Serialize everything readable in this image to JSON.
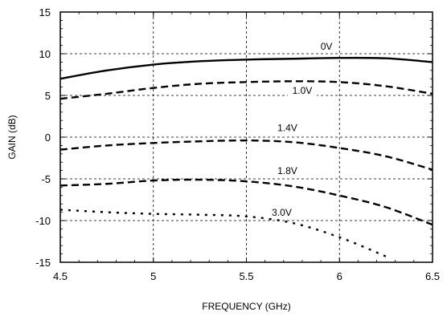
{
  "chart_data": {
    "type": "line",
    "xlabel": "FREQUENCY (GHz)",
    "ylabel": "GAIN (dB)",
    "xlim": [
      4.5,
      6.5
    ],
    "ylim": [
      -15,
      15
    ],
    "xticks": [
      4.5,
      5,
      5.5,
      6,
      6.5
    ],
    "yticks": [
      -15,
      -10,
      -5,
      0,
      5,
      10,
      15
    ],
    "xtick_labels": [
      "4.5",
      "5",
      "5.5",
      "6",
      "6.5"
    ],
    "ytick_labels": [
      "-15",
      "-10",
      "-5",
      "0",
      "5",
      "10",
      "15"
    ],
    "grid": true,
    "series": [
      {
        "name": "0V",
        "dash": "solid",
        "x": [
          4.5,
          4.75,
          5.0,
          5.25,
          5.5,
          5.75,
          6.0,
          6.25,
          6.5
        ],
        "y": [
          7.0,
          8.0,
          8.7,
          9.1,
          9.3,
          9.4,
          9.5,
          9.45,
          9.0
        ]
      },
      {
        "name": "1.0V",
        "dash": "dashed",
        "x": [
          4.5,
          4.75,
          5.0,
          5.25,
          5.5,
          5.75,
          6.0,
          6.25,
          6.5
        ],
        "y": [
          4.6,
          5.2,
          5.9,
          6.4,
          6.6,
          6.7,
          6.6,
          6.1,
          5.2
        ]
      },
      {
        "name": "1.4V",
        "dash": "dashed",
        "x": [
          4.5,
          4.75,
          5.0,
          5.25,
          5.5,
          5.75,
          6.0,
          6.25,
          6.5
        ],
        "y": [
          -1.5,
          -1.0,
          -0.7,
          -0.5,
          -0.4,
          -0.6,
          -1.3,
          -2.3,
          -3.9
        ]
      },
      {
        "name": "1.8V",
        "dash": "dashed",
        "x": [
          4.5,
          4.75,
          5.0,
          5.25,
          5.5,
          5.75,
          6.0,
          6.25,
          6.5
        ],
        "y": [
          -5.8,
          -5.6,
          -5.2,
          -5.1,
          -5.3,
          -5.9,
          -7.0,
          -8.4,
          -10.5
        ]
      },
      {
        "name": "3.0V",
        "dash": "dotted",
        "x": [
          4.5,
          4.75,
          5.0,
          5.25,
          5.5,
          5.75,
          6.0,
          6.25
        ],
        "y": [
          -8.7,
          -9.0,
          -9.2,
          -9.3,
          -9.5,
          -10.3,
          -12.0,
          -14.3
        ]
      }
    ],
    "series_labels": [
      {
        "text": "0V",
        "x": 5.93,
        "y": 10.5
      },
      {
        "text": "1.0V",
        "x": 5.8,
        "y": 5.2
      },
      {
        "text": "1.4V",
        "x": 5.72,
        "y": 0.7
      },
      {
        "text": "1.8V",
        "x": 5.72,
        "y": -4.4
      },
      {
        "text": "3.0V",
        "x": 5.69,
        "y": -9.4
      }
    ]
  }
}
